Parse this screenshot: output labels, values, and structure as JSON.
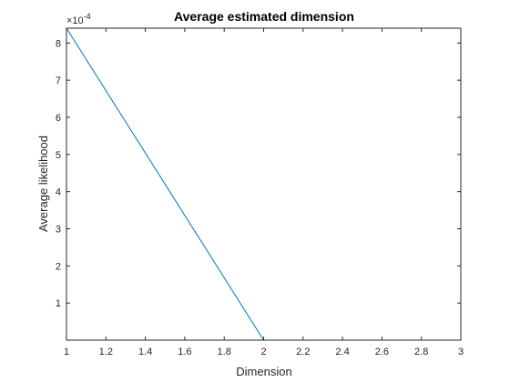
{
  "chart_data": {
    "type": "line",
    "title": "Average estimated dimension",
    "xlabel": "Dimension",
    "ylabel": "Average likelihood",
    "y_multiplier_base": "×10",
    "y_multiplier_exp": "-4",
    "xlim": [
      1,
      3
    ],
    "ylim": [
      0,
      8.4
    ],
    "xticks": [
      1,
      1.2,
      1.4,
      1.6,
      1.8,
      2,
      2.2,
      2.4,
      2.6,
      2.8,
      3
    ],
    "xtick_labels": [
      "1",
      "1.2",
      "1.4",
      "1.6",
      "1.8",
      "2",
      "2.2",
      "2.4",
      "2.6",
      "2.8",
      "3"
    ],
    "yticks": [
      1,
      2,
      3,
      4,
      5,
      6,
      7,
      8
    ],
    "ytick_labels": [
      "1",
      "2",
      "3",
      "4",
      "5",
      "6",
      "7",
      "8"
    ],
    "grid": false,
    "series": [
      {
        "x": [
          1,
          2,
          3
        ],
        "y": [
          8.4,
          0,
          0
        ],
        "color": "#0072bd"
      }
    ]
  }
}
